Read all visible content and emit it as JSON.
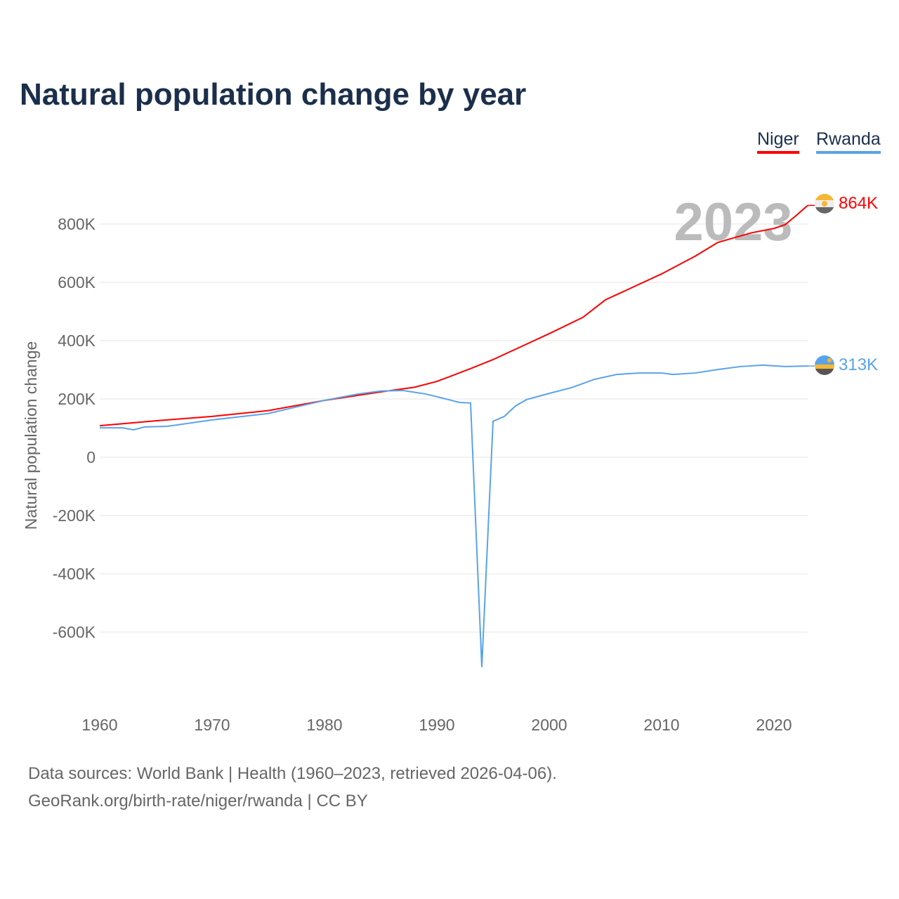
{
  "title": "Natural population change by year",
  "legend": {
    "niger": "Niger",
    "rwanda": "Rwanda"
  },
  "year_label": "2023",
  "end_labels": {
    "niger": "864K",
    "rwanda": "313K"
  },
  "source_line1": "Data sources: World Bank | Health (1960–2023, retrieved 2026-04-06).",
  "source_line2": "GeoRank.org/birth-rate/niger/rwanda | CC BY",
  "colors": {
    "niger": "#ff0000",
    "rwanda": "#5aa3e8"
  },
  "chart_data": {
    "type": "line",
    "title": "Natural population change by year",
    "xlabel": "",
    "ylabel": "Natural population change",
    "xlim": [
      1960,
      2023
    ],
    "ylim": [
      -800000,
      900000
    ],
    "xticks": [
      1960,
      1970,
      1980,
      1990,
      2000,
      2010,
      2020
    ],
    "yticks": [
      {
        "v": -600000,
        "l": "-600K"
      },
      {
        "v": -400000,
        "l": "-400K"
      },
      {
        "v": -200000,
        "l": "-200K"
      },
      {
        "v": 0,
        "l": "0"
      },
      {
        "v": 200000,
        "l": "200K"
      },
      {
        "v": 400000,
        "l": "400K"
      },
      {
        "v": 600000,
        "l": "600K"
      },
      {
        "v": 800000,
        "l": "800K"
      }
    ],
    "series": [
      {
        "name": "Niger",
        "points": [
          [
            1960,
            108000
          ],
          [
            1965,
            125000
          ],
          [
            1970,
            140000
          ],
          [
            1975,
            160000
          ],
          [
            1980,
            195000
          ],
          [
            1985,
            224000
          ],
          [
            1988,
            240000
          ],
          [
            1990,
            260000
          ],
          [
            1993,
            304000
          ],
          [
            1995,
            335000
          ],
          [
            2000,
            424000
          ],
          [
            2003,
            480000
          ],
          [
            2005,
            540000
          ],
          [
            2010,
            629000
          ],
          [
            2013,
            690000
          ],
          [
            2015,
            737000
          ],
          [
            2018,
            770000
          ],
          [
            2020,
            785000
          ],
          [
            2021,
            798000
          ],
          [
            2022,
            830000
          ],
          [
            2023,
            864000
          ]
        ]
      },
      {
        "name": "Rwanda",
        "points": [
          [
            1960,
            101000
          ],
          [
            1962,
            101000
          ],
          [
            1963,
            94000
          ],
          [
            1964,
            104000
          ],
          [
            1966,
            106000
          ],
          [
            1970,
            128000
          ],
          [
            1975,
            150000
          ],
          [
            1980,
            195000
          ],
          [
            1983,
            217000
          ],
          [
            1985,
            227000
          ],
          [
            1987,
            229000
          ],
          [
            1989,
            217000
          ],
          [
            1991,
            198000
          ],
          [
            1992,
            188000
          ],
          [
            1993,
            186000
          ],
          [
            1994,
            -720000
          ],
          [
            1995,
            123000
          ],
          [
            1996,
            140000
          ],
          [
            1997,
            176000
          ],
          [
            1998,
            198000
          ],
          [
            2000,
            219000
          ],
          [
            2002,
            239000
          ],
          [
            2004,
            267000
          ],
          [
            2006,
            284000
          ],
          [
            2008,
            289000
          ],
          [
            2010,
            289000
          ],
          [
            2011,
            284000
          ],
          [
            2013,
            289000
          ],
          [
            2015,
            301000
          ],
          [
            2017,
            311000
          ],
          [
            2019,
            316000
          ],
          [
            2021,
            311000
          ],
          [
            2023,
            313000
          ]
        ]
      }
    ]
  }
}
